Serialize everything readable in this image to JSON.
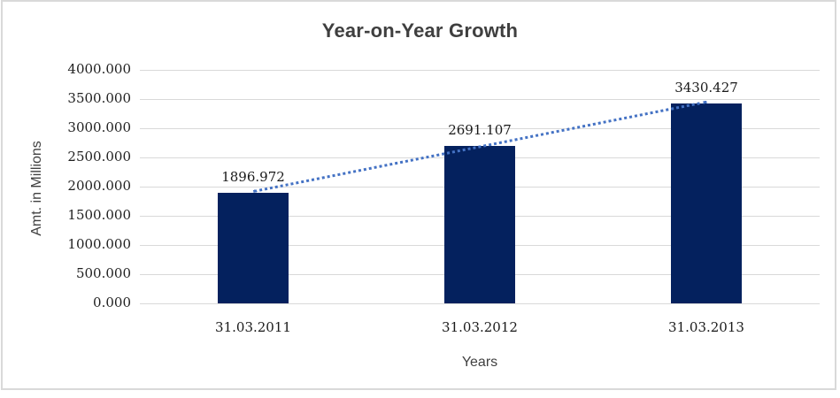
{
  "chart_data": {
    "type": "bar",
    "title": "Year-on-Year Growth",
    "categories": [
      "31.03.2011",
      "31.03.2012",
      "31.03.2013"
    ],
    "values": [
      1896.972,
      2691.107,
      3430.427
    ],
    "data_labels": [
      "1896.972",
      "2691.107",
      "3430.427"
    ],
    "xlabel": "Years",
    "ylabel": "Amt. in Millions",
    "ylim": [
      0,
      4000
    ],
    "ytick_step": 500,
    "yticks": [
      "0.000",
      "500.000",
      "1000.000",
      "1500.000",
      "2000.000",
      "2500.000",
      "3000.000",
      "3500.000",
      "4000.000"
    ],
    "grid": true,
    "legend": false,
    "trendline": {
      "style": "dotted",
      "color": "#4472c4"
    },
    "colors": {
      "bar": "#04215e",
      "gridline": "#d9d9d9",
      "axis_line": "#d9d9d9",
      "frame_border": "#d9d9d9",
      "title_text": "#3f3f3f",
      "tick_text": "#1f1f1f",
      "axis_title_text": "#404040",
      "background": "#ffffff"
    }
  }
}
